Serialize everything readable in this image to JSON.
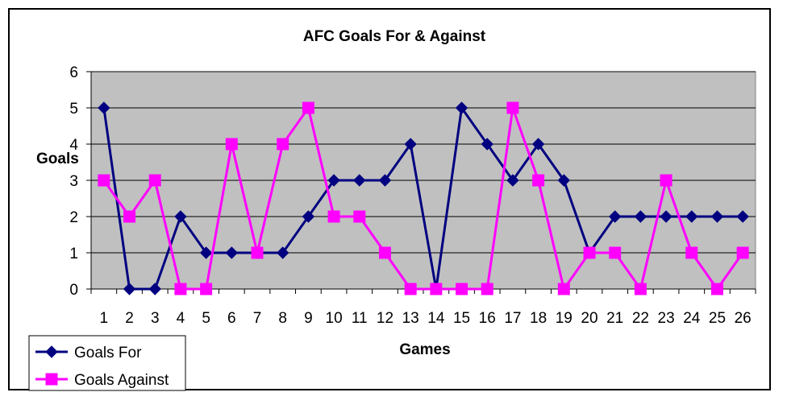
{
  "chart_data": {
    "type": "line",
    "title": "AFC Goals For & Against",
    "xlabel": "Games",
    "ylabel": "Goals",
    "x": [
      1,
      2,
      3,
      4,
      5,
      6,
      7,
      8,
      9,
      10,
      11,
      12,
      13,
      14,
      15,
      16,
      17,
      18,
      19,
      20,
      21,
      22,
      23,
      24,
      25,
      26
    ],
    "ylim": [
      0,
      6
    ],
    "yticks": [
      0,
      1,
      2,
      3,
      4,
      5,
      6
    ],
    "grid": true,
    "legend_position": "bottom-left",
    "series": [
      {
        "name": "Goals For",
        "color": "#000080",
        "marker": "diamond",
        "values": [
          5,
          0,
          0,
          2,
          1,
          1,
          1,
          1,
          2,
          3,
          3,
          3,
          4,
          0,
          5,
          4,
          3,
          4,
          3,
          1,
          2,
          2,
          2,
          2,
          2,
          2
        ]
      },
      {
        "name": "Goals Against",
        "color": "#FF00FF",
        "marker": "square",
        "values": [
          3,
          2,
          3,
          0,
          0,
          4,
          1,
          4,
          5,
          2,
          2,
          1,
          0,
          0,
          0,
          0,
          5,
          3,
          0,
          1,
          1,
          0,
          3,
          1,
          0,
          1
        ]
      }
    ],
    "plot_background": "#C0C0C0"
  }
}
